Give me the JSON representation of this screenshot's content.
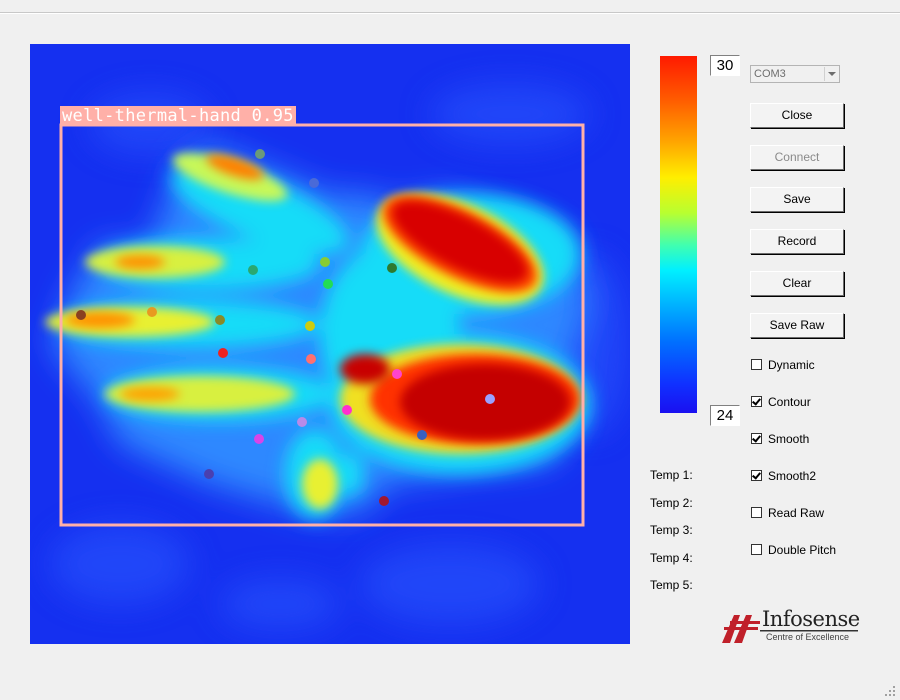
{
  "detection": {
    "label": "well-thermal-hand 0.95",
    "box_color": "#ffb0a8"
  },
  "colorbar": {
    "max": "30",
    "min": "24",
    "top_color": "#ff1a00",
    "bottom_color": "#1a10f0"
  },
  "port": {
    "selected": "COM3"
  },
  "buttons": {
    "close": "Close",
    "connect": "Connect",
    "save": "Save",
    "record": "Record",
    "clear": "Clear",
    "save_raw": "Save Raw"
  },
  "options": [
    {
      "label": "Dynamic",
      "checked": false
    },
    {
      "label": "Contour",
      "checked": true
    },
    {
      "label": "Smooth",
      "checked": true
    },
    {
      "label": "Smooth2",
      "checked": true
    },
    {
      "label": "Read Raw",
      "checked": false
    },
    {
      "label": "Double Pitch",
      "checked": false
    }
  ],
  "temps": [
    "Temp 1:",
    "Temp 2:",
    "Temp 3:",
    "Temp 4:",
    "Temp 5:"
  ],
  "logo": {
    "name": "Infosense",
    "tagline": "Centre of Excellence",
    "brand_color": "#c0202a"
  },
  "keypoint_colors": [
    "#6a9a7a",
    "#4a6ad8",
    "#2aa870",
    "#88cc33",
    "#22dd55",
    "#2e7a2e",
    "#8a4020",
    "#e89a20",
    "#8a8a28",
    "#cccc10",
    "#ee2222",
    "#ff7070",
    "#ff44cc",
    "#b98ae8",
    "#d944e8",
    "#ff2fd0",
    "#9aa0ff",
    "#3a60c0",
    "#4a40b0",
    "#a01830"
  ]
}
